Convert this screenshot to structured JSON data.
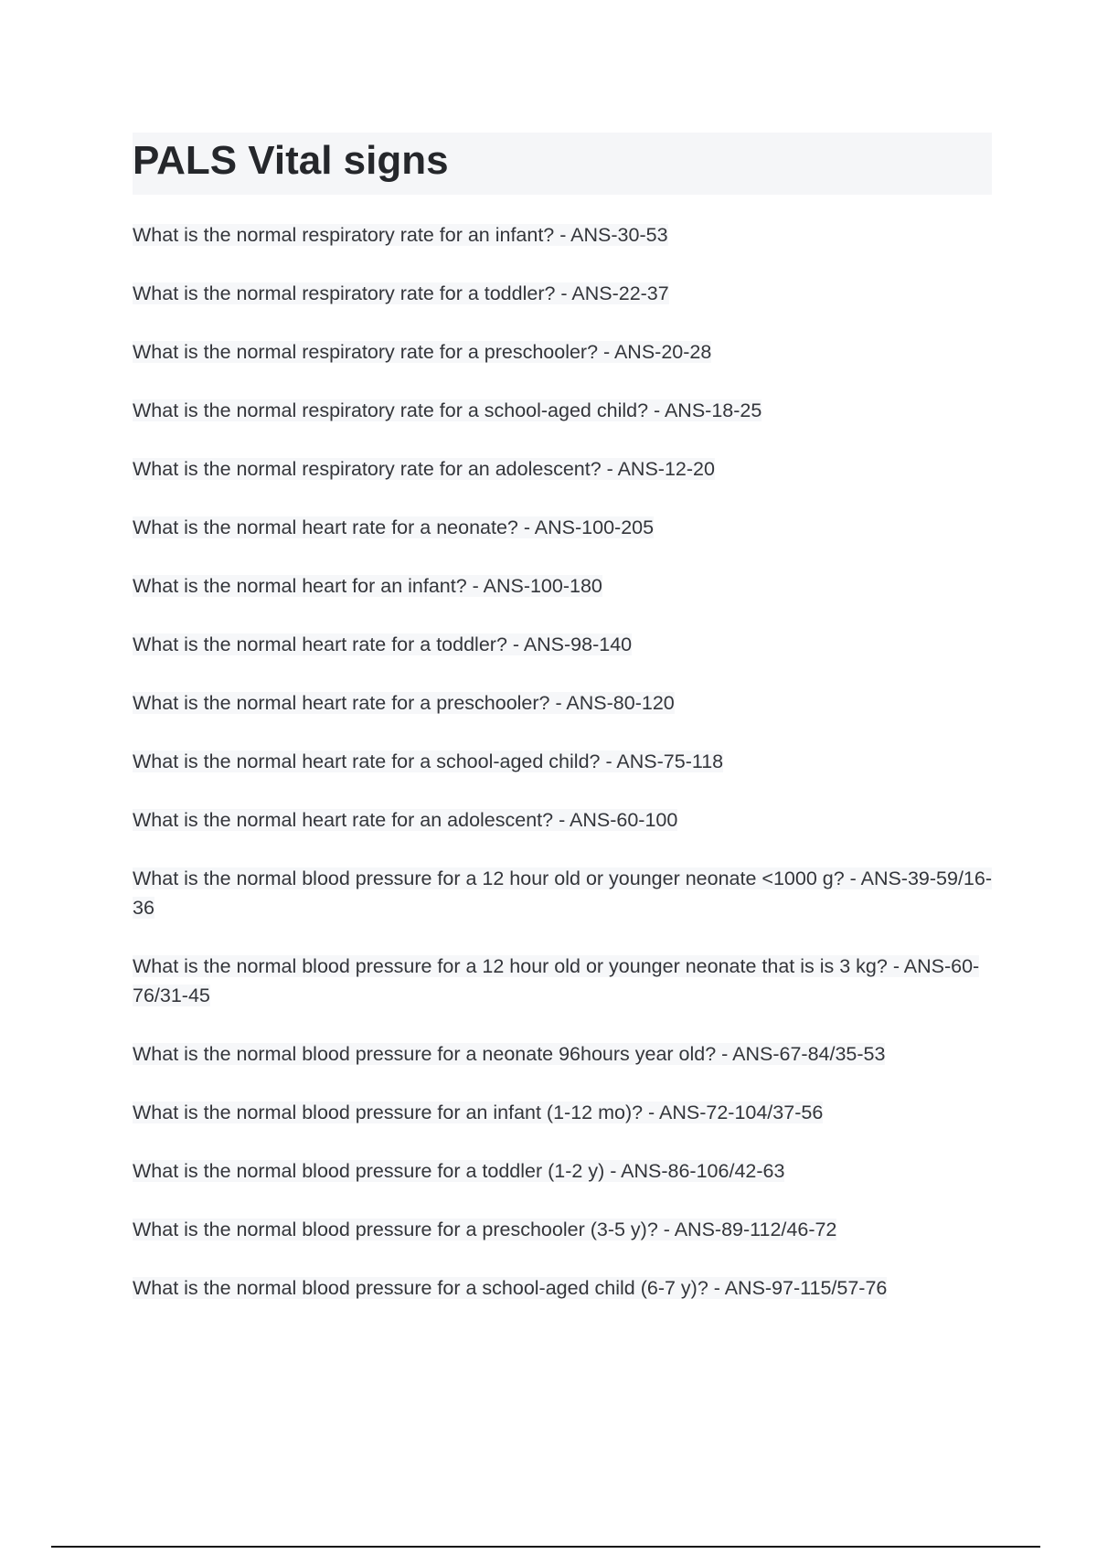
{
  "document": {
    "title": "PALS Vital signs",
    "items": [
      "What is the normal respiratory rate for an infant? - ANS-30-53",
      "What is the normal respiratory rate for a toddler? - ANS-22-37",
      "What is the normal respiratory rate for a preschooler? - ANS-20-28",
      "What is the normal respiratory rate for a school-aged child? - ANS-18-25",
      "What is the normal respiratory rate for an adolescent? - ANS-12-20",
      "What is the normal heart rate for a neonate? - ANS-100-205",
      "What is the normal heart for an infant? - ANS-100-180",
      "What is the normal heart rate for a toddler? - ANS-98-140",
      "What is the normal heart rate for a preschooler? - ANS-80-120",
      "What is the normal heart rate for a school-aged child? - ANS-75-118",
      "What is the normal heart rate for an adolescent? - ANS-60-100",
      "What is the normal blood pressure for a 12 hour old or younger neonate <1000 g? - ANS-39-59/16-36",
      "What is the normal blood pressure for a 12 hour old or younger neonate that is is 3 kg? - ANS-60-76/31-45",
      "What is the normal blood pressure for a neonate 96hours year old? - ANS-67-84/35-53",
      "What is the normal blood pressure for an infant (1-12 mo)? - ANS-72-104/37-56",
      "What is the normal blood pressure for a toddler (1-2 y) - ANS-86-106/42-63",
      "What is the normal blood pressure for a preschooler (3-5 y)? - ANS-89-112/46-72",
      "What is the normal blood pressure for a school-aged child (6-7 y)? - ANS-97-115/57-76"
    ]
  }
}
